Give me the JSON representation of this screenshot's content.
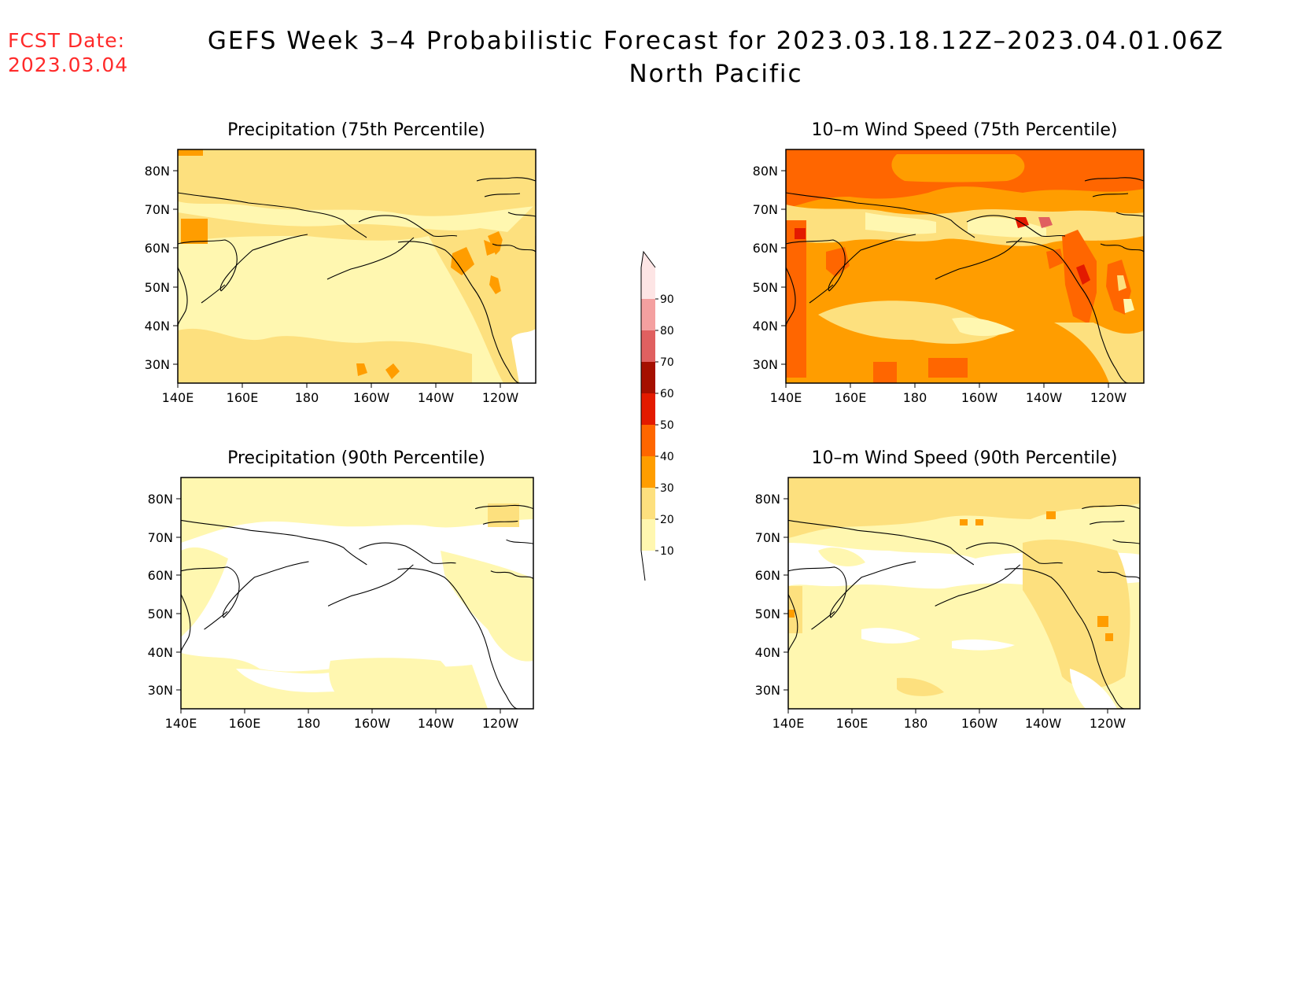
{
  "header": {
    "fcst_label": "FCST Date:",
    "fcst_date": "2023.03.04",
    "title": "GEFS Week 3–4 Probabilistic Forecast for 2023.03.18.12Z–2023.04.01.06Z",
    "subtitle": "North Pacific"
  },
  "colorbar": {
    "levels": [
      "10",
      "20",
      "30",
      "40",
      "50",
      "60",
      "70",
      "80",
      "90"
    ],
    "colors": [
      "#fff7b0",
      "#fde07e",
      "#ff9d00",
      "#ff6600",
      "#e31a00",
      "#a50f00",
      "#e06060",
      "#f4a0a0",
      "#fde5e5"
    ]
  },
  "axes": {
    "lat_labels": [
      "80N",
      "70N",
      "60N",
      "50N",
      "40N",
      "30N"
    ],
    "lon_labels": [
      "140E",
      "160E",
      "180",
      "160W",
      "140W",
      "120W"
    ]
  },
  "panels": [
    {
      "id": "precip75",
      "title": "Precipitation (75th Percentile)"
    },
    {
      "id": "wind75",
      "title": "10–m Wind Speed (75th Percentile)"
    },
    {
      "id": "precip90",
      "title": "Precipitation (90th Percentile)"
    },
    {
      "id": "wind90",
      "title": "10–m Wind Speed (90th Percentile)"
    }
  ]
}
